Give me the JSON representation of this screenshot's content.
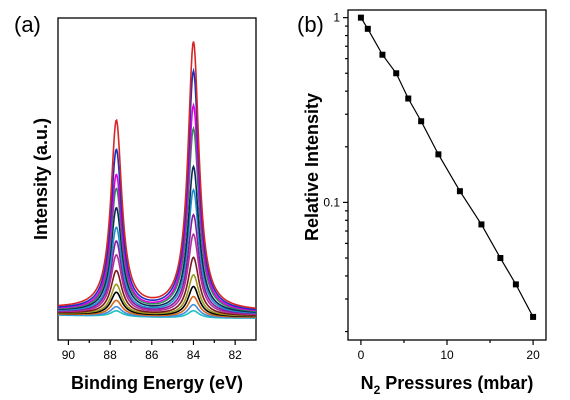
{
  "chart_data": [
    {
      "panel": "(a)",
      "type": "line",
      "xlabel": "Binding Energy (eV)",
      "ylabel": "Intensity (a.u.)",
      "xlim": [
        90.5,
        81.0
      ],
      "x_reversed": true,
      "x_ticks": [
        "90",
        "88",
        "86",
        "84",
        "82"
      ],
      "peaks_eV": [
        87.7,
        84.0
      ],
      "series": [
        {
          "color": "#d62728",
          "peak1": 1.0,
          "peak2": 1.43,
          "baseline": 0.055
        },
        {
          "color": "#1f2fbf",
          "peak1": 0.85,
          "peak2": 1.28,
          "baseline": 0.05
        },
        {
          "color": "#e000e0",
          "peak1": 0.72,
          "peak2": 1.1,
          "baseline": 0.048
        },
        {
          "color": "#2e8b57",
          "peak1": 0.65,
          "peak2": 0.98,
          "baseline": 0.045
        },
        {
          "color": "#0a2a5a",
          "peak1": 0.55,
          "peak2": 0.78,
          "baseline": 0.043
        },
        {
          "color": "#1e90d0",
          "peak1": 0.45,
          "peak2": 0.66,
          "baseline": 0.04
        },
        {
          "color": "#8a1a9a",
          "peak1": 0.38,
          "peak2": 0.53,
          "baseline": 0.038
        },
        {
          "color": "#b0309f",
          "peak1": 0.31,
          "peak2": 0.43,
          "baseline": 0.035
        },
        {
          "color": "#7a1a1a",
          "peak1": 0.23,
          "peak2": 0.31,
          "baseline": 0.032
        },
        {
          "color": "#9a9a20",
          "peak1": 0.16,
          "peak2": 0.22,
          "baseline": 0.03
        },
        {
          "color": "#000000",
          "peak1": 0.12,
          "peak2": 0.16,
          "baseline": 0.028
        },
        {
          "color": "#d2691e",
          "peak1": 0.08,
          "peak2": 0.11,
          "baseline": 0.025
        },
        {
          "color": "#4090e0",
          "peak1": 0.05,
          "peak2": 0.07,
          "baseline": 0.022
        },
        {
          "color": "#20c0c0",
          "peak1": 0.03,
          "peak2": 0.04,
          "baseline": 0.02
        }
      ]
    },
    {
      "panel": "(b)",
      "type": "line",
      "scale_y": "log",
      "xlabel_main": "N",
      "xlabel_sub": "2",
      "xlabel_rest": " Pressures (mbar)",
      "ylabel": "Relative Intensity",
      "xlim": [
        -1.5,
        21.5
      ],
      "ylim": [
        0.018,
        1.1
      ],
      "x_ticks": [
        0,
        10,
        20
      ],
      "y_ticks": [
        1,
        0.1
      ],
      "y_tick_labels": [
        "1",
        "0.1"
      ],
      "x": [
        0,
        0.8,
        2.5,
        4.1,
        5.5,
        7.0,
        9.0,
        11.5,
        14.0,
        16.2,
        18.0,
        20.0
      ],
      "y": [
        1.0,
        0.87,
        0.63,
        0.5,
        0.365,
        0.275,
        0.182,
        0.115,
        0.076,
        0.05,
        0.036,
        0.024
      ]
    }
  ]
}
